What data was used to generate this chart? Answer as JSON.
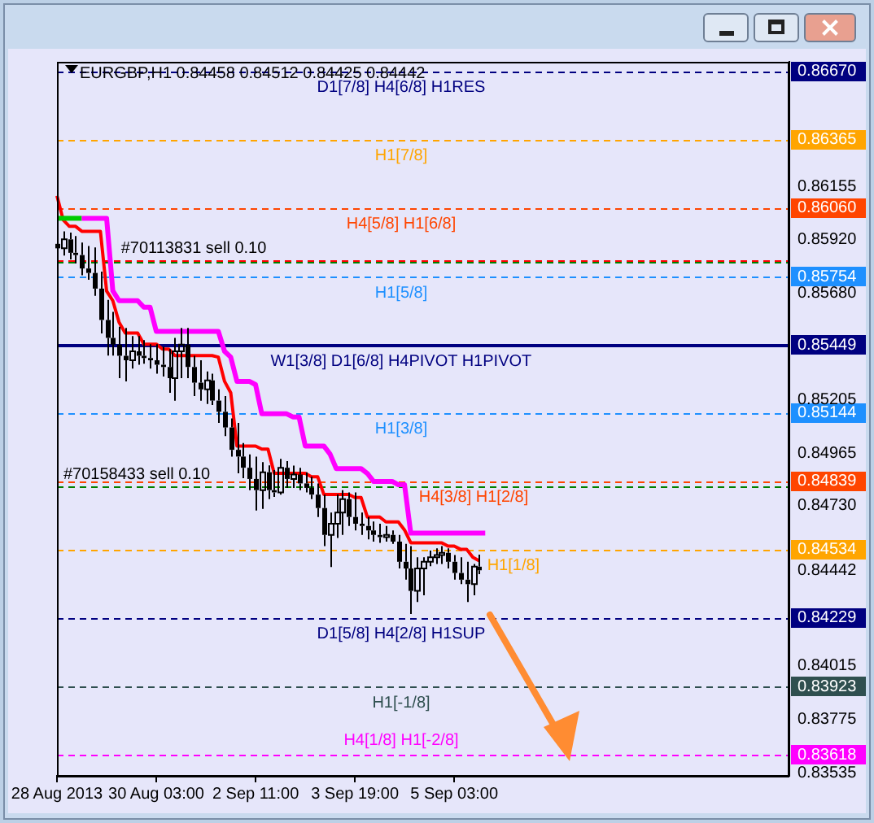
{
  "chart_data": {
    "type": "candlestick",
    "title": "EURGBP,H1 0.84458 0.84512 0.84425 0.84442",
    "color": "#000000",
    "categories": [
      "28 Aug 2013",
      null,
      null,
      null,
      null,
      null,
      null,
      null,
      null,
      null,
      null,
      null,
      null,
      null,
      null,
      null,
      "30 Aug 03:00",
      null,
      null,
      null,
      null,
      null,
      null,
      null,
      null,
      null,
      null,
      null,
      null,
      null,
      null,
      null,
      "2 Sep 11:00",
      null,
      null,
      null,
      null,
      null,
      null,
      null,
      null,
      null,
      null,
      null,
      null,
      null,
      null,
      null,
      "3 Sep 19:00",
      null,
      null,
      null,
      null,
      null,
      null,
      null,
      null,
      null,
      null,
      null,
      null,
      null,
      null,
      null,
      "5 Sep 03:00",
      null,
      null,
      null,
      null,
      null,
      null,
      null,
      null,
      null,
      null,
      null,
      null,
      null,
      null,
      null,
      null,
      null,
      null,
      null,
      null,
      null,
      null,
      null,
      null,
      null,
      null,
      null,
      null,
      null,
      null,
      null,
      null,
      null,
      null,
      null,
      null,
      null,
      null,
      null,
      null,
      null,
      null,
      null,
      null,
      null,
      null,
      null,
      null,
      null,
      null,
      null,
      null,
      null,
      null
    ],
    "ohlc": [
      [
        0.859,
        0.85935,
        0.85834,
        0.8588
      ],
      [
        0.8588,
        0.85956,
        0.85848,
        0.8592
      ],
      [
        0.8592,
        0.8595,
        0.8583,
        0.8586
      ],
      [
        0.8586,
        0.85935,
        0.85812,
        0.8585
      ],
      [
        0.8585,
        0.85906,
        0.8576,
        0.8579
      ],
      [
        0.8579,
        0.8589,
        0.8574,
        0.8577
      ],
      [
        0.8577,
        0.85884,
        0.85668,
        0.857
      ],
      [
        0.857,
        0.85776,
        0.855,
        0.8556
      ],
      [
        0.8556,
        0.8565,
        0.85401,
        0.8548
      ],
      [
        0.8548,
        0.85596,
        0.85401,
        0.8545
      ],
      [
        0.8545,
        0.8553,
        0.853,
        0.854
      ],
      [
        0.854,
        0.85524,
        0.85286,
        0.8538
      ],
      [
        0.8538,
        0.85488,
        0.85343,
        0.8542
      ],
      [
        0.8542,
        0.85488,
        0.8536,
        0.854
      ],
      [
        0.854,
        0.8547,
        0.85365,
        0.8539
      ],
      [
        0.8539,
        0.85452,
        0.85343,
        0.8538
      ],
      [
        0.8538,
        0.85452,
        0.8532,
        0.8536
      ],
      [
        0.8536,
        0.8544,
        0.85307,
        0.8535
      ],
      [
        0.8535,
        0.8543,
        0.85235,
        0.853
      ],
      [
        0.853,
        0.8548,
        0.85199,
        0.8542
      ],
      [
        0.8542,
        0.85524,
        0.853,
        0.8545
      ],
      [
        0.8545,
        0.85524,
        0.853,
        0.8535
      ],
      [
        0.8535,
        0.854,
        0.8522,
        0.8528
      ],
      [
        0.8528,
        0.8538,
        0.85199,
        0.8525
      ],
      [
        0.8525,
        0.8533,
        0.85185,
        0.8529
      ],
      [
        0.8529,
        0.8532,
        0.8518,
        0.852
      ],
      [
        0.852,
        0.8525,
        0.851,
        0.8515
      ],
      [
        0.8515,
        0.8522,
        0.85041,
        0.8508
      ],
      [
        0.8508,
        0.8512,
        0.8495,
        0.8498
      ],
      [
        0.8498,
        0.851,
        0.84875,
        0.8495
      ],
      [
        0.8495,
        0.8501,
        0.84853,
        0.849
      ],
      [
        0.849,
        0.8496,
        0.848,
        0.8485
      ],
      [
        0.8485,
        0.8495,
        0.84709,
        0.848
      ],
      [
        0.848,
        0.84925,
        0.84716,
        0.8488
      ],
      [
        0.8488,
        0.84911,
        0.8476,
        0.848
      ],
      [
        0.848,
        0.8489,
        0.8477,
        0.8479
      ],
      [
        0.8479,
        0.8494,
        0.8478,
        0.849
      ],
      [
        0.849,
        0.8493,
        0.8481,
        0.8485
      ],
      [
        0.8485,
        0.8491,
        0.8481,
        0.8487
      ],
      [
        0.8487,
        0.849,
        0.848,
        0.8483
      ],
      [
        0.8483,
        0.8488,
        0.8479,
        0.8481
      ],
      [
        0.8481,
        0.8486,
        0.8476,
        0.8478
      ],
      [
        0.8478,
        0.8483,
        0.8468,
        0.8472
      ],
      [
        0.8472,
        0.8478,
        0.8455,
        0.846
      ],
      [
        0.846,
        0.847,
        0.84457,
        0.8465
      ],
      [
        0.8465,
        0.84781,
        0.84586,
        0.847
      ],
      [
        0.847,
        0.848,
        0.846,
        0.8476
      ],
      [
        0.8476,
        0.8479,
        0.8464,
        0.8468
      ],
      [
        0.8468,
        0.8479,
        0.8462,
        0.8465
      ],
      [
        0.8465,
        0.847,
        0.846,
        0.8464
      ],
      [
        0.8464,
        0.8468,
        0.8458,
        0.8462
      ],
      [
        0.8462,
        0.8466,
        0.8457,
        0.846
      ],
      [
        0.846,
        0.8465,
        0.84565,
        0.8459
      ],
      [
        0.8459,
        0.8464,
        0.8457,
        0.846
      ],
      [
        0.846,
        0.8462,
        0.8456,
        0.8457
      ],
      [
        0.8457,
        0.846,
        0.8445,
        0.8448
      ],
      [
        0.8448,
        0.8456,
        0.844,
        0.8445
      ],
      [
        0.8445,
        0.8455,
        0.84247,
        0.8435
      ],
      [
        0.8435,
        0.845,
        0.843,
        0.8445
      ],
      [
        0.8445,
        0.845,
        0.8433,
        0.8448
      ],
      [
        0.8448,
        0.8453,
        0.8446,
        0.845
      ],
      [
        0.845,
        0.8454,
        0.8447,
        0.8451
      ],
      [
        0.8451,
        0.8455,
        0.8447,
        0.8452
      ],
      [
        0.8452,
        0.8454,
        0.8445,
        0.8448
      ],
      [
        0.8448,
        0.8451,
        0.844,
        0.8443
      ],
      [
        0.8443,
        0.845,
        0.8438,
        0.844
      ],
      [
        0.844,
        0.8448,
        0.843,
        0.8438
      ],
      [
        0.8438,
        0.8447,
        0.8433,
        0.84458
      ],
      [
        0.84458,
        0.84512,
        0.84425,
        0.84442
      ],
      null,
      null,
      null,
      null,
      null,
      null,
      null,
      null,
      null,
      null,
      null,
      null,
      null,
      null,
      null,
      null,
      null,
      null,
      null,
      null,
      null,
      null,
      null,
      null,
      null,
      null,
      null,
      null,
      null,
      null,
      null,
      null,
      null,
      null,
      null,
      null,
      null,
      null,
      null,
      null,
      null,
      null,
      null,
      null,
      null,
      null,
      null,
      null,
      null,
      null
    ],
    "series": [
      {
        "type": "line",
        "color": "#ff00ff",
        "values": [
          null,
          null,
          null,
          null,
          0.86014,
          0.86014,
          0.86014,
          0.86014,
          0.86014,
          0.8569,
          0.85646,
          0.85646,
          0.85646,
          0.85646,
          0.85617,
          0.85617,
          0.85509,
          0.85509,
          0.85509,
          0.85509,
          0.85509,
          0.85509,
          0.85509,
          0.85509,
          0.85509,
          0.85509,
          0.85509,
          0.8542,
          0.85394,
          0.85286,
          0.85286,
          0.85286,
          0.85271,
          0.85141,
          0.85141,
          0.85141,
          0.85141,
          0.85141,
          0.85127,
          0.85127,
          0.84997,
          0.84997,
          0.84997,
          0.84997,
          0.84961,
          0.84896,
          0.84896,
          0.84896,
          0.84896,
          0.84896,
          0.84875,
          0.84839,
          0.84839,
          0.84839,
          0.84839,
          0.84824,
          0.84824,
          0.84608,
          0.84608,
          0.84608,
          0.84608,
          0.84608,
          0.84608,
          0.84608,
          0.84608,
          0.84608,
          0.84608,
          0.84608,
          0.84608,
          0.84608,
          null,
          null,
          null,
          null,
          null,
          null,
          null,
          null,
          null,
          null,
          null,
          null,
          null,
          null,
          null,
          null,
          null,
          null,
          null,
          null,
          null,
          null,
          null,
          null,
          null,
          null,
          null,
          null,
          null,
          null,
          null,
          null,
          null,
          null,
          null,
          null,
          null,
          null,
          null,
          null,
          null,
          null,
          null,
          null,
          null,
          null,
          null,
          null,
          null
        ]
      },
      {
        "type": "line",
        "color": "#00cc00",
        "values": [
          0.86014,
          0.86014,
          0.86014,
          0.86014,
          0.86014,
          null,
          null,
          null,
          null,
          null,
          null,
          null,
          null,
          null,
          null,
          null,
          null,
          null,
          null,
          null,
          null,
          null,
          null,
          null,
          null,
          null,
          null,
          null,
          null,
          null,
          null,
          null,
          null,
          null,
          null,
          null,
          null,
          null,
          null,
          null,
          null,
          null,
          null,
          null,
          null,
          null,
          null,
          null,
          null,
          null,
          null,
          null,
          null,
          null,
          null,
          null,
          null,
          null,
          null,
          null,
          null,
          null,
          null,
          null,
          null,
          null,
          null,
          null,
          null,
          null,
          null,
          null,
          null,
          null,
          null,
          null,
          null,
          null,
          null,
          null,
          null,
          null,
          null,
          null,
          null,
          null,
          null,
          null,
          null,
          null,
          null,
          null,
          null,
          null,
          null,
          null,
          null,
          null,
          null,
          null,
          null,
          null,
          null,
          null,
          null,
          null,
          null,
          null,
          null,
          null,
          null,
          null,
          null,
          null,
          null,
          null,
          null,
          null,
          null
        ]
      },
      {
        "type": "line",
        "color": "#ff0000",
        "values": [
          0.86115,
          0.86007,
          0.85978,
          0.85978,
          0.85956,
          0.85956,
          0.85956,
          0.85956,
          0.85689,
          0.85646,
          0.8555,
          0.85502,
          0.85502,
          0.85502,
          0.85452,
          0.85452,
          0.85452,
          0.8543,
          0.8543,
          0.85401,
          0.85401,
          0.85401,
          0.85401,
          0.85401,
          0.85401,
          0.85401,
          0.85394,
          0.85286,
          0.85235,
          0.84997,
          0.84997,
          0.84997,
          0.84997,
          0.84983,
          0.84983,
          0.84875,
          0.84875,
          0.84875,
          0.84875,
          0.84875,
          0.84875,
          0.8486,
          0.8486,
          0.84781,
          0.84781,
          0.84781,
          0.84781,
          0.84781,
          0.84767,
          0.84767,
          0.8468,
          0.8468,
          0.8468,
          0.84658,
          0.84658,
          0.84658,
          0.84622,
          0.84565,
          0.84565,
          0.84565,
          0.84565,
          0.84565,
          0.84565,
          0.8455,
          0.8455,
          0.84536,
          0.84536,
          0.845,
          0.84485,
          null,
          null,
          null,
          null,
          null,
          null,
          null,
          null,
          null,
          null,
          null,
          null,
          null,
          null,
          null,
          null,
          null,
          null,
          null,
          null,
          null,
          null,
          null,
          null,
          null,
          null,
          null,
          null,
          null,
          null,
          null,
          null,
          null,
          null,
          null,
          null,
          null,
          null,
          null,
          null,
          null,
          null,
          null,
          null,
          null,
          null,
          null,
          null,
          null,
          null
        ]
      }
    ],
    "ylim": [
      0.83524,
      0.86713
    ],
    "yticks": [
      {
        "value": 0.8667,
        "label": "0.86670"
      },
      0.86365,
      0.86155,
      {
        "value": 0.8606,
        "label": "0.86060"
      },
      {
        "value": 0.8592,
        "label": "0.85920"
      },
      0.85754,
      {
        "value": 0.8568,
        "label": "0.85680"
      },
      0.85449,
      0.85205,
      0.85144,
      0.84965,
      0.84839,
      {
        "value": 0.8473,
        "label": "0.84730"
      },
      0.84534,
      0.84442,
      0.84229,
      0.84015,
      0.83923,
      0.83775,
      0.83618,
      0.83535
    ],
    "ref_lines": [
      {
        "axis": "y",
        "value": 0.8667,
        "label": "D1[7/8] H4[6/8] H1RES",
        "color": "#000080",
        "line_style": "dashed"
      },
      {
        "axis": "y",
        "value": 0.86365,
        "label": "H1[7/8]",
        "color": "#ffa500",
        "line_style": "dashed"
      },
      {
        "axis": "y",
        "value": 0.8606,
        "label": "H4[5/8] H1[6/8]",
        "color": "#ff4500",
        "line_style": "dashed"
      },
      {
        "axis": "y",
        "value": 0.85754,
        "label": "H1[5/8]",
        "color": "#1e90ff",
        "line_style": "dashed"
      },
      {
        "axis": "y",
        "value": 0.85449,
        "label": "W1[3/8] D1[6/8] H4PIVOT H1PIVOT",
        "color": "#000080",
        "line_style": "solid"
      },
      {
        "axis": "y",
        "value": 0.85144,
        "label": "H1[3/8]",
        "color": "#1e90ff",
        "line_style": "dashed"
      },
      {
        "axis": "y",
        "value": 0.84839,
        "label": "H4[3/8] H1[2/8]",
        "color": "#ff4500",
        "line_style": "dashed"
      },
      {
        "axis": "y",
        "value": 0.84534,
        "label": "H1[1/8]",
        "color": "#ffa500",
        "line_style": "dashed"
      },
      {
        "axis": "y",
        "value": 0.84229,
        "label": "D1[5/8] H4[2/8] H1SUP",
        "color": "#000080",
        "line_style": "dashed"
      },
      {
        "axis": "y",
        "value": 0.83923,
        "label": "H1[-1/8]",
        "color": "#2f4f4f",
        "line_style": "dashed"
      },
      {
        "axis": "y",
        "value": 0.83618,
        "label": "H4[1/8] H1[-2/8]",
        "color": "#ff00ff",
        "line_style": "dashed"
      },
      {
        "axis": "y",
        "value": 0.8583,
        "color": "#ff0000",
        "line_style": "dashed"
      },
      {
        "axis": "y",
        "value": 0.8582,
        "color": "#008000",
        "line_style": "dashed"
      },
      {
        "axis": "y",
        "value": 0.8482,
        "color": "#008000",
        "line_style": "dashed"
      }
    ],
    "annotations": [
      {
        "text": "#70113831 sell 0.10",
        "y": 0.8583
      },
      {
        "text": "#70158433 sell 0.10",
        "y": 0.8482
      }
    ],
    "legend": false
  }
}
